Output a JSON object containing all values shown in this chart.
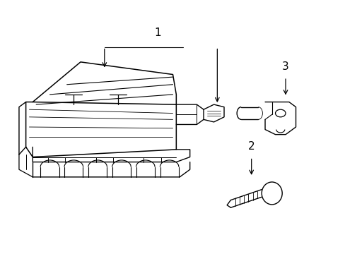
{
  "bg_color": "#ffffff",
  "line_color": "#000000",
  "line_width": 1.1,
  "fig_width": 4.89,
  "fig_height": 3.6,
  "dpi": 100
}
